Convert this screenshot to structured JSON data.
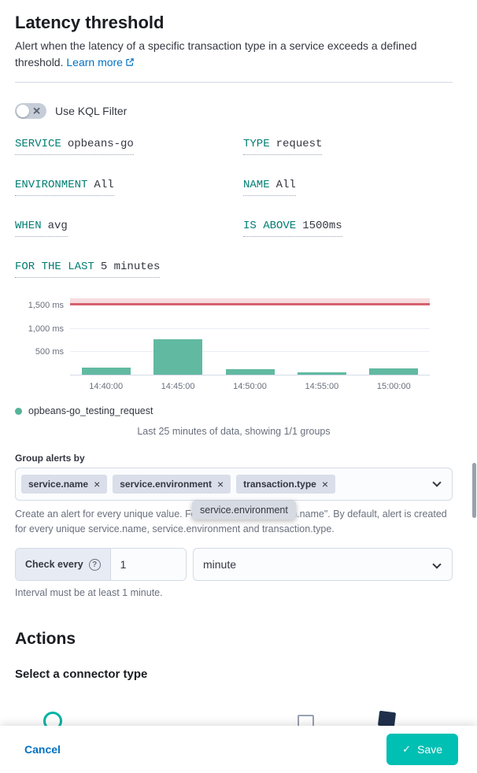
{
  "header": {
    "title": "Latency threshold",
    "description": "Alert when the latency of a specific transaction type in a service exceeds a defined threshold.",
    "learn_more_label": "Learn more"
  },
  "kql_filter": {
    "label": "Use KQL Filter",
    "enabled": false
  },
  "expressions": [
    {
      "label": "SERVICE",
      "value": "opbeans-go"
    },
    {
      "label": "TYPE",
      "value": "request"
    },
    {
      "label": "ENVIRONMENT",
      "value": "All"
    },
    {
      "label": "NAME",
      "value": "All"
    },
    {
      "label": "WHEN",
      "value": "avg"
    },
    {
      "label": "IS ABOVE",
      "value": "1500ms"
    },
    {
      "label": "FOR THE LAST",
      "value": "5 minutes"
    }
  ],
  "chart_data": {
    "type": "bar",
    "x": [
      "14:40:00",
      "14:45:00",
      "14:50:00",
      "14:55:00",
      "15:00:00"
    ],
    "values": [
      150,
      775,
      120,
      50,
      135
    ],
    "ylim": [
      0,
      1660
    ],
    "y_ticks": [
      {
        "value": 500,
        "label": "500 ms"
      },
      {
        "value": 1000,
        "label": "1,000 ms"
      },
      {
        "value": 1500,
        "label": "1,500 ms"
      }
    ],
    "threshold": 1500,
    "unit": "ms",
    "legend": "opbeans-go_testing_request",
    "caption": "Last 25 minutes of data, showing 1/1 groups",
    "bar_color": "#54b399",
    "threshold_line_color": "#d6606f",
    "threshold_fill_color": "rgba(214, 96, 111, 0.22)",
    "grid": true,
    "legend_position": "bottom-left"
  },
  "group_by": {
    "label": "Group alerts by",
    "badges": [
      "service.name",
      "service.environment",
      "transaction.type"
    ],
    "tooltip": "service.environment",
    "help": "Create an alert for every unique value. For example, \"transaction.name\". By default, alert is created for every unique service.name, service.environment and transaction.type."
  },
  "check_every": {
    "label": "Check every",
    "value": "1",
    "unit": "minute",
    "help": "Interval must be at least 1 minute."
  },
  "actions": {
    "title": "Actions",
    "subtitle": "Select a connector type"
  },
  "footer": {
    "cancel_label": "Cancel",
    "save_label": "Save"
  },
  "colors": {
    "expression_teal": "#017d73",
    "link_blue": "#0071c2",
    "save_green": "#00bfb3"
  }
}
